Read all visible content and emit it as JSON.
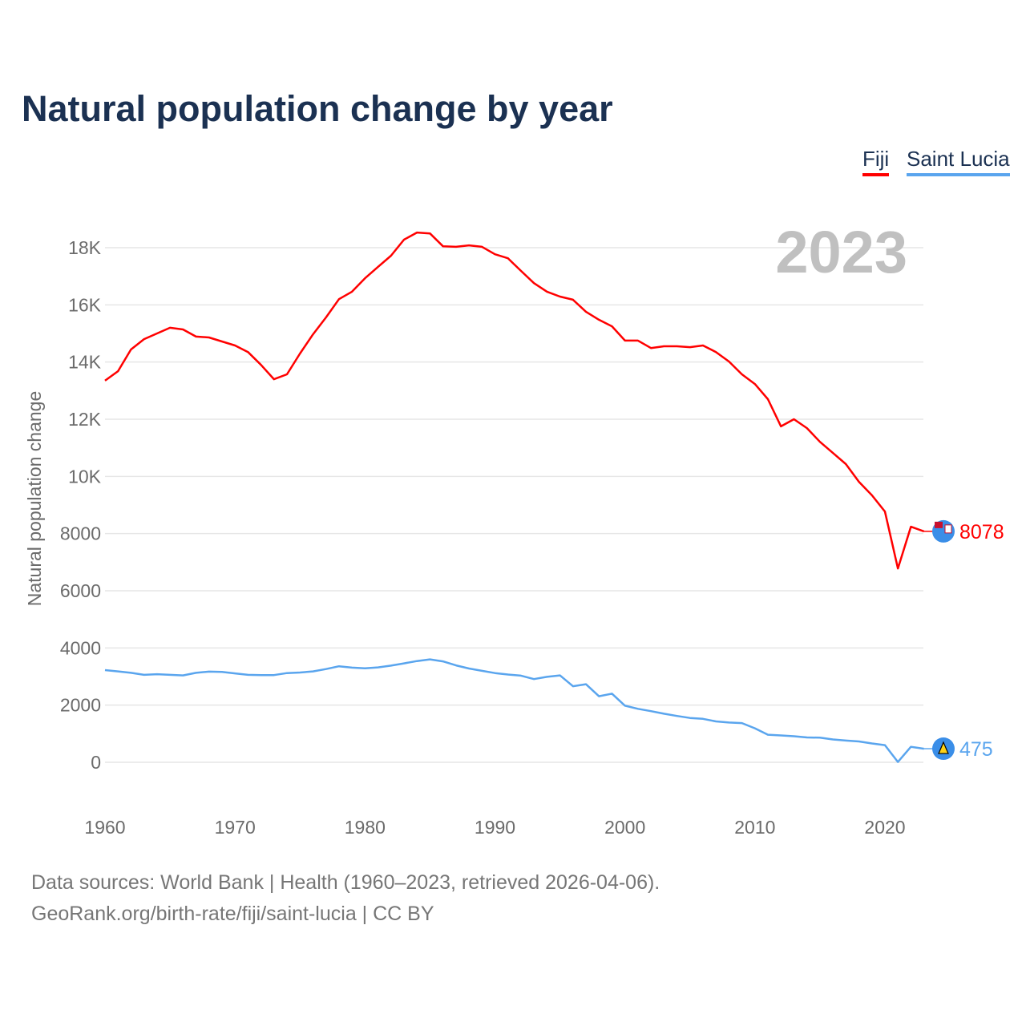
{
  "title": "Natural population change by year",
  "legend": [
    {
      "label": "Fiji",
      "color": "#ff0000"
    },
    {
      "label": "Saint Lucia",
      "color": "#5aa5ee"
    }
  ],
  "footer": {
    "line1": "Data sources: World Bank | Health (1960–2023, retrieved 2026-04-06).",
    "line2": "GeoRank.org/birth-rate/fiji/saint-lucia | CC BY"
  },
  "chart_data": {
    "type": "line",
    "title": "Natural population change by year",
    "xlabel": "",
    "ylabel": "Natural population change",
    "year_watermark": "2023",
    "xlim": [
      1960,
      2023
    ],
    "ylim": [
      -1000,
      18900
    ],
    "x_ticks": [
      1960,
      1970,
      1980,
      1990,
      2000,
      2010,
      2020
    ],
    "x_tick_labels": [
      "1960",
      "1970",
      "1980",
      "1990",
      "2000",
      "2010",
      "2020"
    ],
    "y_ticks": [
      0,
      2000,
      4000,
      6000,
      8000,
      10000,
      12000,
      14000,
      16000,
      18000
    ],
    "y_tick_labels": [
      "0",
      "2000",
      "4000",
      "6000",
      "8000",
      "10K",
      "12K",
      "14K",
      "16K",
      "18K"
    ],
    "grid": true,
    "legend_position": "top-right",
    "x": [
      1960,
      1961,
      1962,
      1963,
      1964,
      1965,
      1966,
      1967,
      1968,
      1969,
      1970,
      1971,
      1972,
      1973,
      1974,
      1975,
      1976,
      1977,
      1978,
      1979,
      1980,
      1981,
      1982,
      1983,
      1984,
      1985,
      1986,
      1987,
      1988,
      1989,
      1990,
      1991,
      1992,
      1993,
      1994,
      1995,
      1996,
      1997,
      1998,
      1999,
      2000,
      2001,
      2002,
      2003,
      2004,
      2005,
      2006,
      2007,
      2008,
      2009,
      2010,
      2011,
      2012,
      2013,
      2014,
      2015,
      2016,
      2017,
      2018,
      2019,
      2020,
      2021,
      2022,
      2023
    ],
    "series": [
      {
        "name": "Fiji",
        "color": "#ff0000",
        "end_label": "8078",
        "flag": "fiji-flag",
        "values": [
          13350,
          13680,
          14440,
          14800,
          15000,
          15200,
          15140,
          14890,
          14860,
          14720,
          14580,
          14350,
          13900,
          13400,
          13570,
          14300,
          14970,
          15560,
          16200,
          16460,
          16930,
          17330,
          17720,
          18280,
          18530,
          18500,
          18050,
          18030,
          18080,
          18030,
          17770,
          17630,
          17190,
          16760,
          16460,
          16290,
          16180,
          15760,
          15480,
          15250,
          14750,
          14750,
          14490,
          14550,
          14550,
          14520,
          14580,
          14350,
          14020,
          13570,
          13230,
          12700,
          11750,
          12000,
          11690,
          11210,
          10820,
          10430,
          9810,
          9340,
          8770,
          6780,
          8240,
          8078
        ]
      },
      {
        "name": "Saint Lucia",
        "color": "#5aa5ee",
        "end_label": "475",
        "flag": "saint-lucia-flag",
        "values": [
          3224,
          3180,
          3130,
          3060,
          3080,
          3060,
          3040,
          3130,
          3170,
          3160,
          3110,
          3060,
          3050,
          3050,
          3120,
          3140,
          3180,
          3260,
          3360,
          3310,
          3290,
          3320,
          3380,
          3460,
          3540,
          3600,
          3530,
          3390,
          3280,
          3200,
          3120,
          3070,
          3030,
          2910,
          2990,
          3040,
          2660,
          2730,
          2310,
          2400,
          1980,
          1870,
          1790,
          1700,
          1620,
          1550,
          1520,
          1430,
          1390,
          1370,
          1190,
          965,
          940,
          910,
          870,
          860,
          800,
          760,
          730,
          660,
          600,
          10,
          540,
          475
        ]
      }
    ]
  }
}
